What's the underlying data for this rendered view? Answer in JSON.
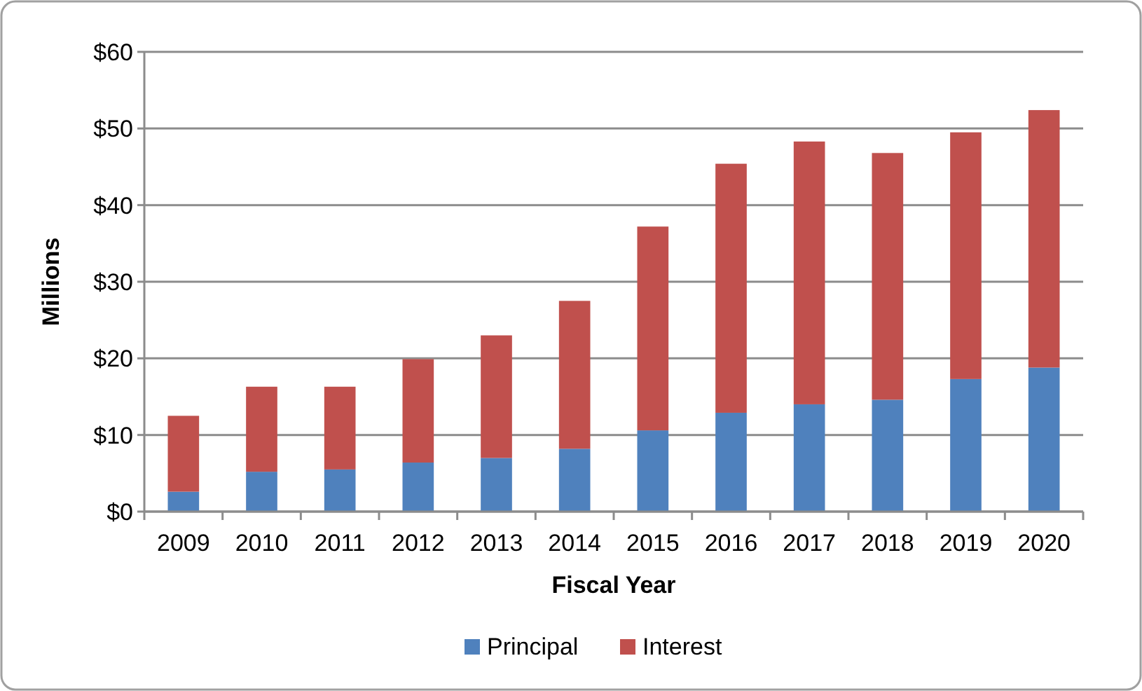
{
  "chart_data": {
    "type": "bar",
    "stacked": true,
    "xlabel": "Fiscal Year",
    "ylabel": "Millions",
    "categories": [
      "2009",
      "2010",
      "2011",
      "2012",
      "2013",
      "2014",
      "2015",
      "2016",
      "2017",
      "2018",
      "2019",
      "2020"
    ],
    "series": [
      {
        "name": "Principal",
        "color": "#4f81bd",
        "values": [
          2.6,
          5.2,
          5.5,
          6.4,
          7.0,
          8.2,
          10.6,
          12.9,
          14.0,
          14.6,
          17.3,
          18.8
        ]
      },
      {
        "name": "Interest",
        "color": "#c0504d",
        "values": [
          9.9,
          11.1,
          10.8,
          13.5,
          16.0,
          19.3,
          26.6,
          32.5,
          34.3,
          32.2,
          32.2,
          33.6
        ]
      }
    ],
    "ylim": [
      0,
      60
    ],
    "yticks": [
      {
        "value": 0,
        "label": "$0"
      },
      {
        "value": 10,
        "label": "$10"
      },
      {
        "value": 20,
        "label": "$20"
      },
      {
        "value": 30,
        "label": "$30"
      },
      {
        "value": 40,
        "label": "$40"
      },
      {
        "value": 50,
        "label": "$50"
      },
      {
        "value": 60,
        "label": "$60"
      }
    ],
    "grid": "y",
    "legend": "bottom"
  }
}
